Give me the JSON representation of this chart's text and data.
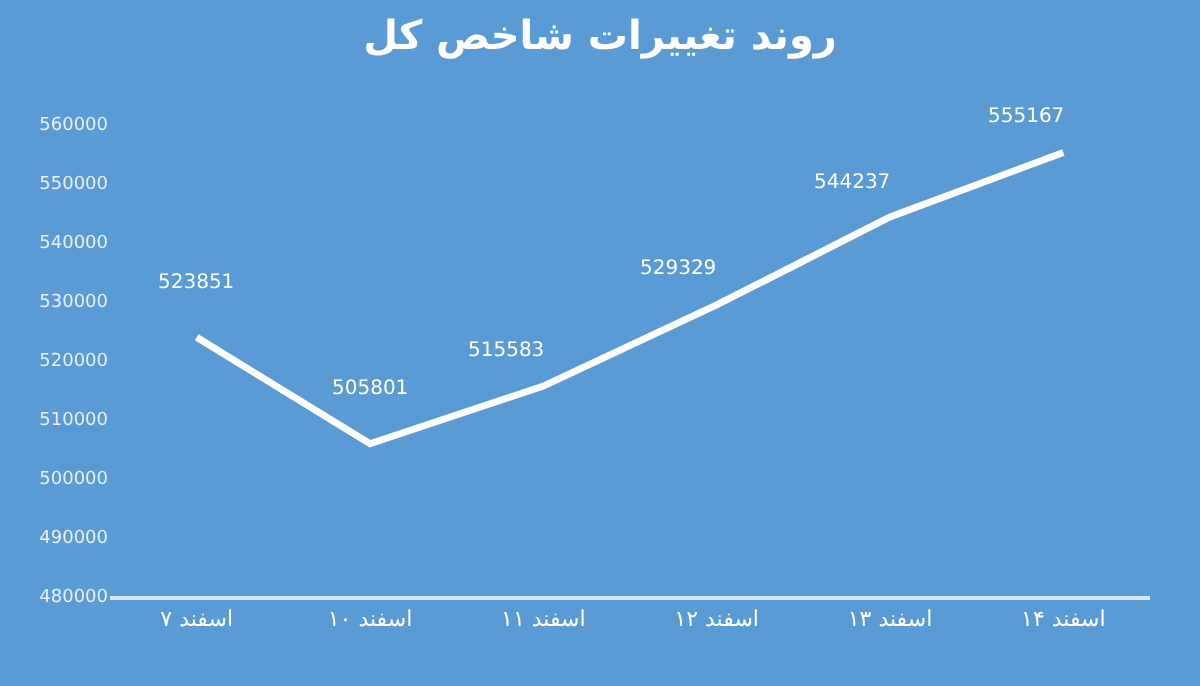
{
  "chart_data": {
    "type": "line",
    "title": "روند تغییرات شاخص کل",
    "categories": [
      "۷ اسفند",
      "۱۰ اسفند",
      "۱۱ اسفند",
      "۱۲ اسفند",
      "۱۳ اسفند",
      "۱۴ اسفند"
    ],
    "series": [
      {
        "color": "#ffffff",
        "values": [
          523851,
          505801,
          515583,
          529329,
          544237,
          555167
        ]
      }
    ],
    "ylim": [
      480000,
      560000
    ],
    "yticks": [
      480000,
      490000,
      500000,
      510000,
      520000,
      530000,
      540000,
      550000,
      560000
    ],
    "data_labels": true,
    "grid": false,
    "marker": "none",
    "line_style": "solid"
  }
}
